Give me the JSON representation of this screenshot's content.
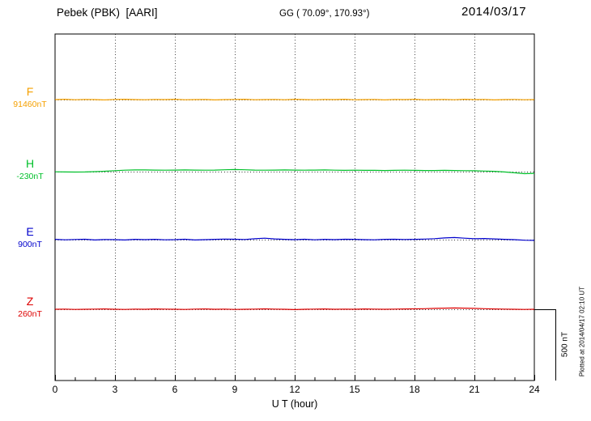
{
  "header": {
    "station": "Pebek (PBK)  [AARI]",
    "coords": "GG ( 70.09°, 170.93°)",
    "date": "2014/03/17"
  },
  "xaxis": {
    "label": "U T (hour)"
  },
  "scalebar": {
    "label": "500 nT"
  },
  "footer_note": "Plotted at 2014/04/17 02:10 UT",
  "chart_data": {
    "type": "line",
    "title": "Pebek (PBK) [AARI] magnetogram 2014/03/17",
    "xlabel": "U T (hour)",
    "x_range": [
      0,
      24
    ],
    "x_ticks": [
      0,
      3,
      6,
      9,
      12,
      15,
      18,
      21,
      24
    ],
    "grid": "dotted vertical gridlines at 3-hour intervals; dotted horizontal baseline per trace",
    "legend_position": "left",
    "scale_nT": 500,
    "x": [
      0,
      0.5,
      1,
      1.5,
      2,
      2.5,
      3,
      3.5,
      4,
      4.5,
      5,
      5.5,
      6,
      6.5,
      7,
      7.5,
      8,
      8.5,
      9,
      9.5,
      10,
      10.5,
      11,
      11.5,
      12,
      12.5,
      13,
      13.5,
      14,
      14.5,
      15,
      15.5,
      16,
      16.5,
      17,
      17.5,
      18,
      18.5,
      19,
      19.5,
      20,
      20.5,
      21,
      21.5,
      22,
      22.5,
      23,
      23.5,
      24
    ],
    "series": [
      {
        "name": "F",
        "label_value": "91460nT",
        "baseline_nT": 91460,
        "color": "#f5a000",
        "offsets_nT": [
          0,
          2,
          -1,
          1,
          0,
          -2,
          1,
          2,
          0,
          -1,
          1,
          0,
          2,
          -1,
          0,
          1,
          -2,
          0,
          1,
          2,
          -1,
          0,
          1,
          -1,
          2,
          0,
          -1,
          1,
          0,
          2,
          -1,
          0,
          1,
          -2,
          1,
          0,
          2,
          -1,
          0,
          1,
          -1,
          2,
          0,
          1,
          -2,
          0,
          1,
          -1,
          0
        ]
      },
      {
        "name": "H",
        "label_value": "-230nT",
        "baseline_nT": -230,
        "color": "#00c02a",
        "offsets_nT": [
          -1,
          -2,
          -3,
          -2,
          0,
          3,
          7,
          10,
          12,
          12,
          11,
          10,
          11,
          12,
          11,
          10,
          11,
          13,
          15,
          13,
          11,
          10,
          11,
          12,
          11,
          10,
          11,
          12,
          10,
          9,
          10,
          9,
          9,
          8,
          9,
          10,
          9,
          8,
          8,
          9,
          8,
          7,
          6,
          4,
          2,
          -2,
          -8,
          -14,
          -12
        ]
      },
      {
        "name": "E",
        "label_value": "900nT",
        "baseline_nT": 900,
        "color": "#0000cc",
        "offsets_nT": [
          2,
          -1,
          1,
          3,
          -2,
          1,
          0,
          -2,
          2,
          0,
          2,
          -1,
          0,
          3,
          -2,
          0,
          2,
          4,
          3,
          1,
          6,
          10,
          5,
          2,
          0,
          3,
          -1,
          2,
          0,
          3,
          2,
          0,
          -1,
          2,
          3,
          1,
          2,
          4,
          7,
          12,
          15,
          10,
          6,
          8,
          5,
          2,
          0,
          -4,
          -5
        ]
      },
      {
        "name": "Z",
        "label_value": "260nT",
        "baseline_nT": 260,
        "color": "#dd0000",
        "offsets_nT": [
          0,
          1,
          -1,
          0,
          1,
          2,
          0,
          -1,
          1,
          0,
          2,
          1,
          0,
          -1,
          1,
          2,
          0,
          1,
          -1,
          0,
          1,
          3,
          1,
          0,
          -2,
          0,
          1,
          2,
          0,
          1,
          0,
          2,
          1,
          0,
          1,
          2,
          3,
          4,
          6,
          8,
          9,
          8,
          6,
          4,
          2,
          1,
          0,
          -1,
          0
        ]
      }
    ]
  }
}
